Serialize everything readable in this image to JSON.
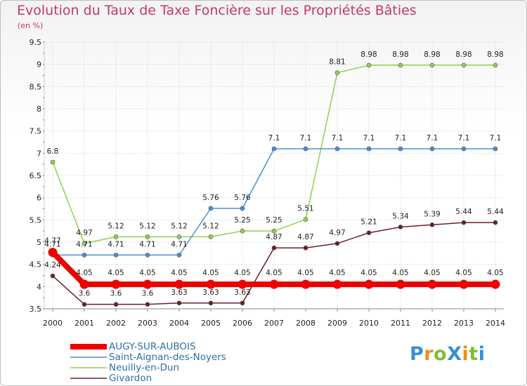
{
  "title": "Evolution du Taux de Taxe Foncière sur les Propriétés Bâties",
  "subtitle": "(en %)",
  "logo": {
    "text": "ProXiti",
    "colors": [
      "#3a8fd1",
      "#f28c1e",
      "#7cbf2f",
      "#3a8fd1",
      "#f28c1e",
      "#7cbf2f",
      "#3a8fd1"
    ]
  },
  "chart_data": {
    "type": "line",
    "title": "Evolution du Taux de Taxe Foncière sur les Propriétés Bâties",
    "ylabel": "(en %)",
    "xlabel": "",
    "ylim": [
      3.5,
      9.5
    ],
    "yticks": [
      "3.5",
      "4",
      "4.5",
      "5",
      "5.5",
      "6",
      "6.5",
      "7",
      "7.5",
      "8",
      "8.5",
      "9",
      "9.5"
    ],
    "categories": [
      "2000",
      "2001",
      "2002",
      "2003",
      "2004",
      "2005",
      "2006",
      "2007",
      "2008",
      "2009",
      "2010",
      "2011",
      "2012",
      "2013",
      "2014"
    ],
    "grid": true,
    "legend_position": "bottom-left",
    "series": [
      {
        "name": "Neuilly-en-Dun",
        "color": "#8fd14f",
        "values": [
          6.8,
          4.97,
          5.12,
          5.12,
          5.12,
          5.12,
          5.25,
          5.25,
          5.51,
          8.81,
          8.98,
          8.98,
          8.98,
          8.98,
          8.98
        ],
        "labels": [
          "6.8",
          "4.97",
          "5.12",
          "5.12",
          "5.12",
          "5.12",
          "5.25",
          "5.25",
          "5.51",
          "8.81",
          "8.98",
          "8.98",
          "8.98",
          "8.98",
          "8.98"
        ]
      },
      {
        "name": "Saint-Aignan-des-Noyers",
        "color": "#4a8fd0",
        "values": [
          4.71,
          4.71,
          4.71,
          4.71,
          4.71,
          5.76,
          5.76,
          7.1,
          7.1,
          7.1,
          7.1,
          7.1,
          7.1,
          7.1,
          7.1
        ],
        "labels": [
          "4.71",
          "4.71",
          "4.71",
          "4.71",
          "4.71",
          "5.76",
          "5.76",
          "7.1",
          "7.1",
          "7.1",
          "7.1",
          "7.1",
          "7.1",
          "7.1",
          "7.1"
        ]
      },
      {
        "name": "Givardon",
        "color": "#6b1f24",
        "values": [
          4.24,
          3.6,
          3.6,
          3.6,
          3.63,
          3.63,
          3.63,
          4.87,
          4.87,
          4.97,
          5.21,
          5.34,
          5.39,
          5.44,
          5.44
        ],
        "labels": [
          "4.24",
          "3.6",
          "3.6",
          "3.6",
          "3.63",
          "3.63",
          "3.63",
          "4.87",
          "4.87",
          "4.97",
          "5.21",
          "5.34",
          "5.39",
          "5.44",
          "5.44"
        ]
      },
      {
        "name": "AUGY-SUR-AUBOIS",
        "color": "#ee0000",
        "values": [
          4.77,
          4.05,
          4.05,
          4.05,
          4.05,
          4.05,
          4.05,
          4.05,
          4.05,
          4.05,
          4.05,
          4.05,
          4.05,
          4.05,
          4.05
        ],
        "labels": [
          "4.77",
          "4.05",
          "4.05",
          "4.05",
          "4.05",
          "4.05",
          "4.05",
          "4.05",
          "4.05",
          "4.05",
          "4.05",
          "4.05",
          "4.05",
          "4.05",
          "4.05"
        ]
      }
    ],
    "legend": [
      "AUGY-SUR-AUBOIS",
      "Saint-Aignan-des-Noyers",
      "Neuilly-en-Dun",
      "Givardon"
    ]
  }
}
